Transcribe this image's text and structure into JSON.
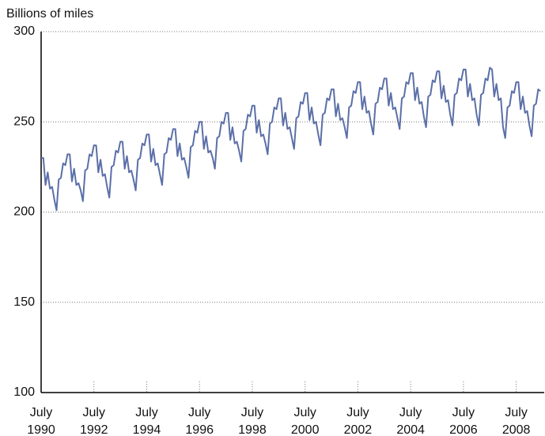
{
  "chart_data": {
    "type": "line",
    "y_label": "Billions of miles",
    "categories": [
      "July 1990",
      null,
      null,
      null,
      null,
      null,
      null,
      null,
      null,
      null,
      null,
      null,
      null,
      null,
      null,
      null,
      null,
      null,
      null,
      null,
      null,
      null,
      null,
      null,
      "July 1992",
      null,
      null,
      null,
      null,
      null,
      null,
      null,
      null,
      null,
      null,
      null,
      null,
      null,
      null,
      null,
      null,
      null,
      null,
      null,
      null,
      null,
      null,
      null,
      "July 1994",
      null,
      null,
      null,
      null,
      null,
      null,
      null,
      null,
      null,
      null,
      null,
      null,
      null,
      null,
      null,
      null,
      null,
      null,
      null,
      null,
      null,
      null,
      null,
      "July 1996",
      null,
      null,
      null,
      null,
      null,
      null,
      null,
      null,
      null,
      null,
      null,
      null,
      null,
      null,
      null,
      null,
      null,
      null,
      null,
      null,
      null,
      null,
      null,
      "July 1998",
      null,
      null,
      null,
      null,
      null,
      null,
      null,
      null,
      null,
      null,
      null,
      null,
      null,
      null,
      null,
      null,
      null,
      null,
      null,
      null,
      null,
      null,
      null,
      "July 2000",
      null,
      null,
      null,
      null,
      null,
      null,
      null,
      null,
      null,
      null,
      null,
      null,
      null,
      null,
      null,
      null,
      null,
      null,
      null,
      null,
      null,
      null,
      null,
      "July 2002",
      null,
      null,
      null,
      null,
      null,
      null,
      null,
      null,
      null,
      null,
      null,
      null,
      null,
      null,
      null,
      null,
      null,
      null,
      null,
      null,
      null,
      null,
      null,
      "July 2004",
      null,
      null,
      null,
      null,
      null,
      null,
      null,
      null,
      null,
      null,
      null,
      null,
      null,
      null,
      null,
      null,
      null,
      null,
      null,
      null,
      null,
      null,
      null,
      "July 2006",
      null,
      null,
      null,
      null,
      null,
      null,
      null,
      null,
      null,
      null,
      null,
      null,
      null,
      null,
      null,
      null,
      null,
      null,
      null,
      null,
      null,
      null,
      null,
      "July 2008",
      null,
      null,
      null,
      null,
      null,
      null,
      null,
      null,
      null,
      null,
      null
    ],
    "series": [
      {
        "color": "#5b6fa8",
        "values": [
          230,
          230,
          215,
          222,
          213,
          214,
          207,
          201,
          218,
          219,
          227,
          226,
          232,
          232,
          217,
          224,
          215,
          216,
          212,
          206,
          223,
          224,
          232,
          231,
          237,
          237,
          222,
          229,
          220,
          221,
          214,
          208,
          225,
          226,
          234,
          233,
          239,
          239,
          224,
          231,
          222,
          223,
          218,
          212,
          229,
          230,
          238,
          237,
          243,
          243,
          228,
          235,
          226,
          227,
          221,
          215,
          232,
          233,
          241,
          240,
          246,
          246,
          231,
          238,
          229,
          230,
          225,
          219,
          236,
          237,
          245,
          244,
          250,
          250,
          235,
          242,
          233,
          234,
          230,
          224,
          241,
          242,
          250,
          249,
          255,
          255,
          240,
          247,
          238,
          239,
          234,
          228,
          245,
          246,
          254,
          253,
          259,
          259,
          244,
          251,
          242,
          243,
          238,
          232,
          249,
          250,
          258,
          257,
          263,
          263,
          248,
          255,
          246,
          247,
          241,
          235,
          252,
          253,
          261,
          260,
          266,
          266,
          251,
          258,
          249,
          250,
          243,
          237,
          254,
          255,
          263,
          262,
          268,
          268,
          253,
          260,
          251,
          252,
          247,
          241,
          258,
          259,
          267,
          266,
          272,
          272,
          257,
          264,
          255,
          256,
          249,
          243,
          260,
          261,
          269,
          268,
          274,
          274,
          259,
          266,
          257,
          258,
          252,
          246,
          263,
          264,
          272,
          271,
          277,
          277,
          262,
          269,
          260,
          261,
          253,
          247,
          264,
          265,
          273,
          272,
          278,
          278,
          263,
          270,
          261,
          262,
          254,
          248,
          265,
          266,
          274,
          273,
          279,
          279,
          264,
          271,
          262,
          263,
          254,
          248,
          265,
          266,
          274,
          273,
          280,
          279,
          264,
          271,
          262,
          263,
          247,
          241,
          258,
          259,
          267,
          266,
          272,
          272,
          257,
          264,
          255,
          256,
          248,
          242,
          259,
          260,
          268,
          267
        ]
      }
    ],
    "ylim": [
      100,
      300
    ],
    "yticks": [
      100,
      150,
      200,
      250,
      300
    ],
    "grid": true
  }
}
